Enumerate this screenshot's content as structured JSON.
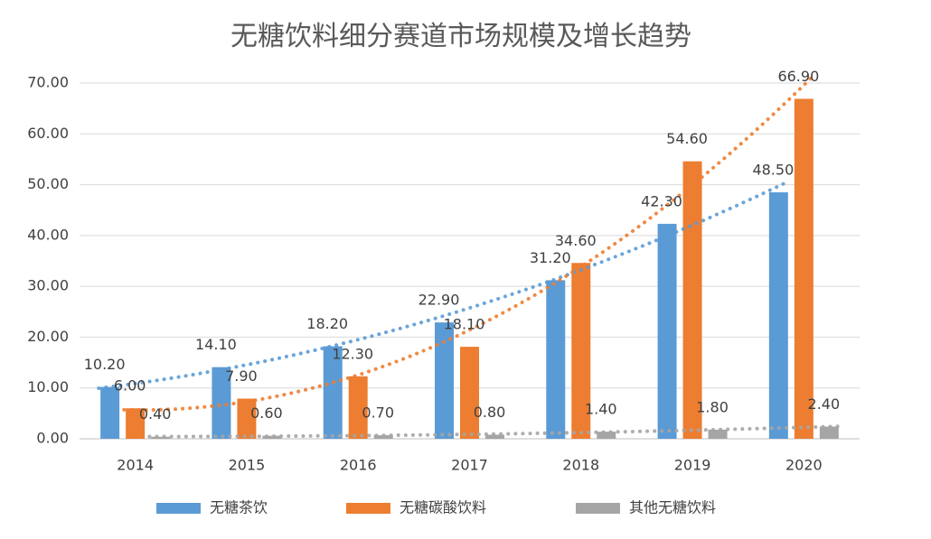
{
  "chart_data": {
    "type": "bar",
    "title": "无糖饮料细分赛道市场规模及增长趋势",
    "categories": [
      "2014",
      "2015",
      "2016",
      "2017",
      "2018",
      "2019",
      "2020"
    ],
    "series": [
      {
        "name": "无糖茶饮",
        "color": "#5b9bd5",
        "values": [
          10.2,
          14.1,
          18.2,
          22.9,
          31.2,
          42.3,
          48.5
        ],
        "value_labels": [
          "10.20",
          "14.10",
          "18.20",
          "22.90",
          "31.20",
          "42.30",
          "48.50"
        ]
      },
      {
        "name": "无糖碳酸饮料",
        "color": "#ed7d31",
        "values": [
          6,
          7.9,
          12.3,
          18.1,
          34.6,
          54.6,
          66.9
        ],
        "value_labels": [
          "6.00",
          "7.90",
          "12.30",
          "18.10",
          "34.60",
          "54.60",
          "66.90"
        ]
      },
      {
        "name": "其他无糖饮料",
        "color": "#a5a5a5",
        "values": [
          0.4,
          0.6,
          0.7,
          0.8,
          1.4,
          1.8,
          2.4
        ],
        "value_labels": [
          "0.40",
          "0.60",
          "0.70",
          "0.80",
          "1.40",
          "1.80",
          "2.40"
        ]
      }
    ],
    "ylim": [
      0,
      70
    ],
    "yticks": [
      {
        "value": 0,
        "label": "0.00"
      },
      {
        "value": 10,
        "label": "10.00"
      },
      {
        "value": 20,
        "label": "20.00"
      },
      {
        "value": 30,
        "label": "30.00"
      },
      {
        "value": 40,
        "label": "40.00"
      },
      {
        "value": 50,
        "label": "50.00"
      },
      {
        "value": 60,
        "label": "60.00"
      },
      {
        "value": 70,
        "label": "70.00"
      }
    ],
    "grid": true,
    "legend": "bottom",
    "trendline": "polynomial"
  }
}
